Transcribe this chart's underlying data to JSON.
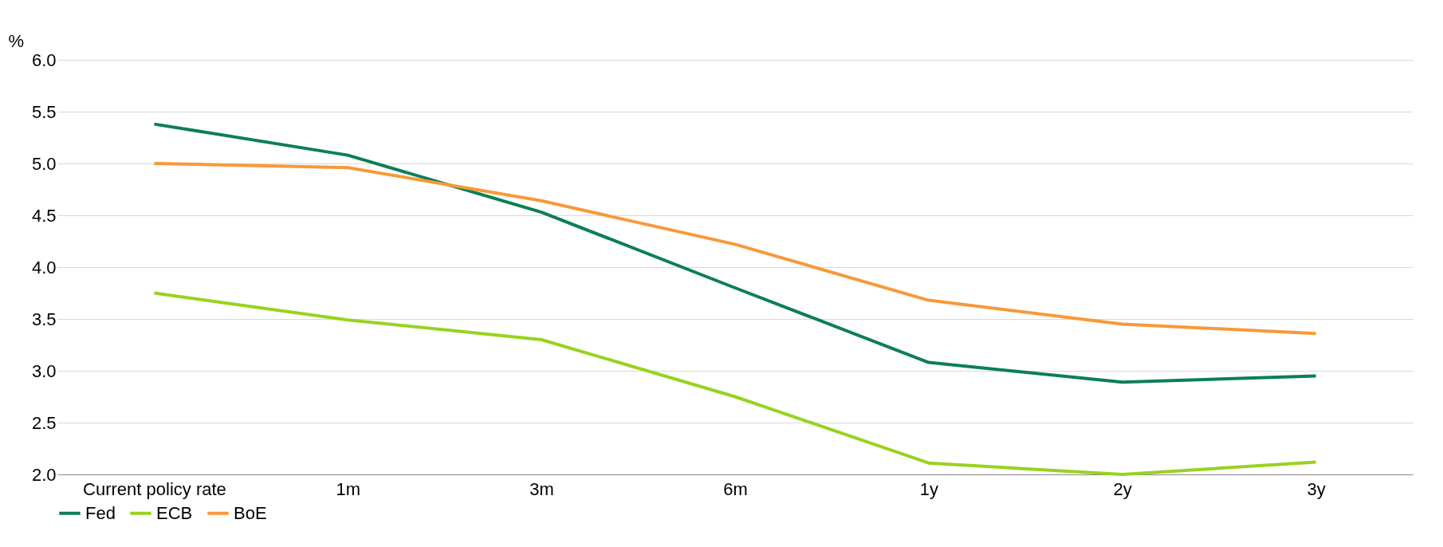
{
  "chart_data": {
    "type": "line",
    "ylabel": "%",
    "categories": [
      "Current policy rate",
      "1m",
      "3m",
      "6m",
      "1y",
      "2y",
      "3y"
    ],
    "series": [
      {
        "name": "Fed",
        "color": "#0b7f55",
        "values": [
          5.38,
          5.08,
          4.53,
          3.8,
          3.08,
          2.89,
          2.95
        ]
      },
      {
        "name": "ECB",
        "color": "#99d21f",
        "values": [
          3.75,
          3.49,
          3.3,
          2.75,
          2.11,
          2.0,
          2.12
        ]
      },
      {
        "name": "BoE",
        "color": "#f7993a",
        "values": [
          5.0,
          4.96,
          4.64,
          4.22,
          3.68,
          3.45,
          3.36
        ]
      }
    ],
    "ylim": [
      2.0,
      6.0
    ],
    "yticks": [
      {
        "value": 2,
        "label": "2.0"
      },
      {
        "value": 2.5,
        "label": "2.5"
      },
      {
        "value": 3,
        "label": "3.0"
      },
      {
        "value": 3.5,
        "label": "3.5"
      },
      {
        "value": 4,
        "label": "4.0"
      },
      {
        "value": 4.5,
        "label": "4.5"
      },
      {
        "value": 5,
        "label": "5.0"
      },
      {
        "value": 5.5,
        "label": "5.5"
      },
      {
        "value": 6,
        "label": "6.0"
      }
    ],
    "grid": "y",
    "legend": "bottom",
    "line_style": "solid",
    "marker": "none"
  }
}
